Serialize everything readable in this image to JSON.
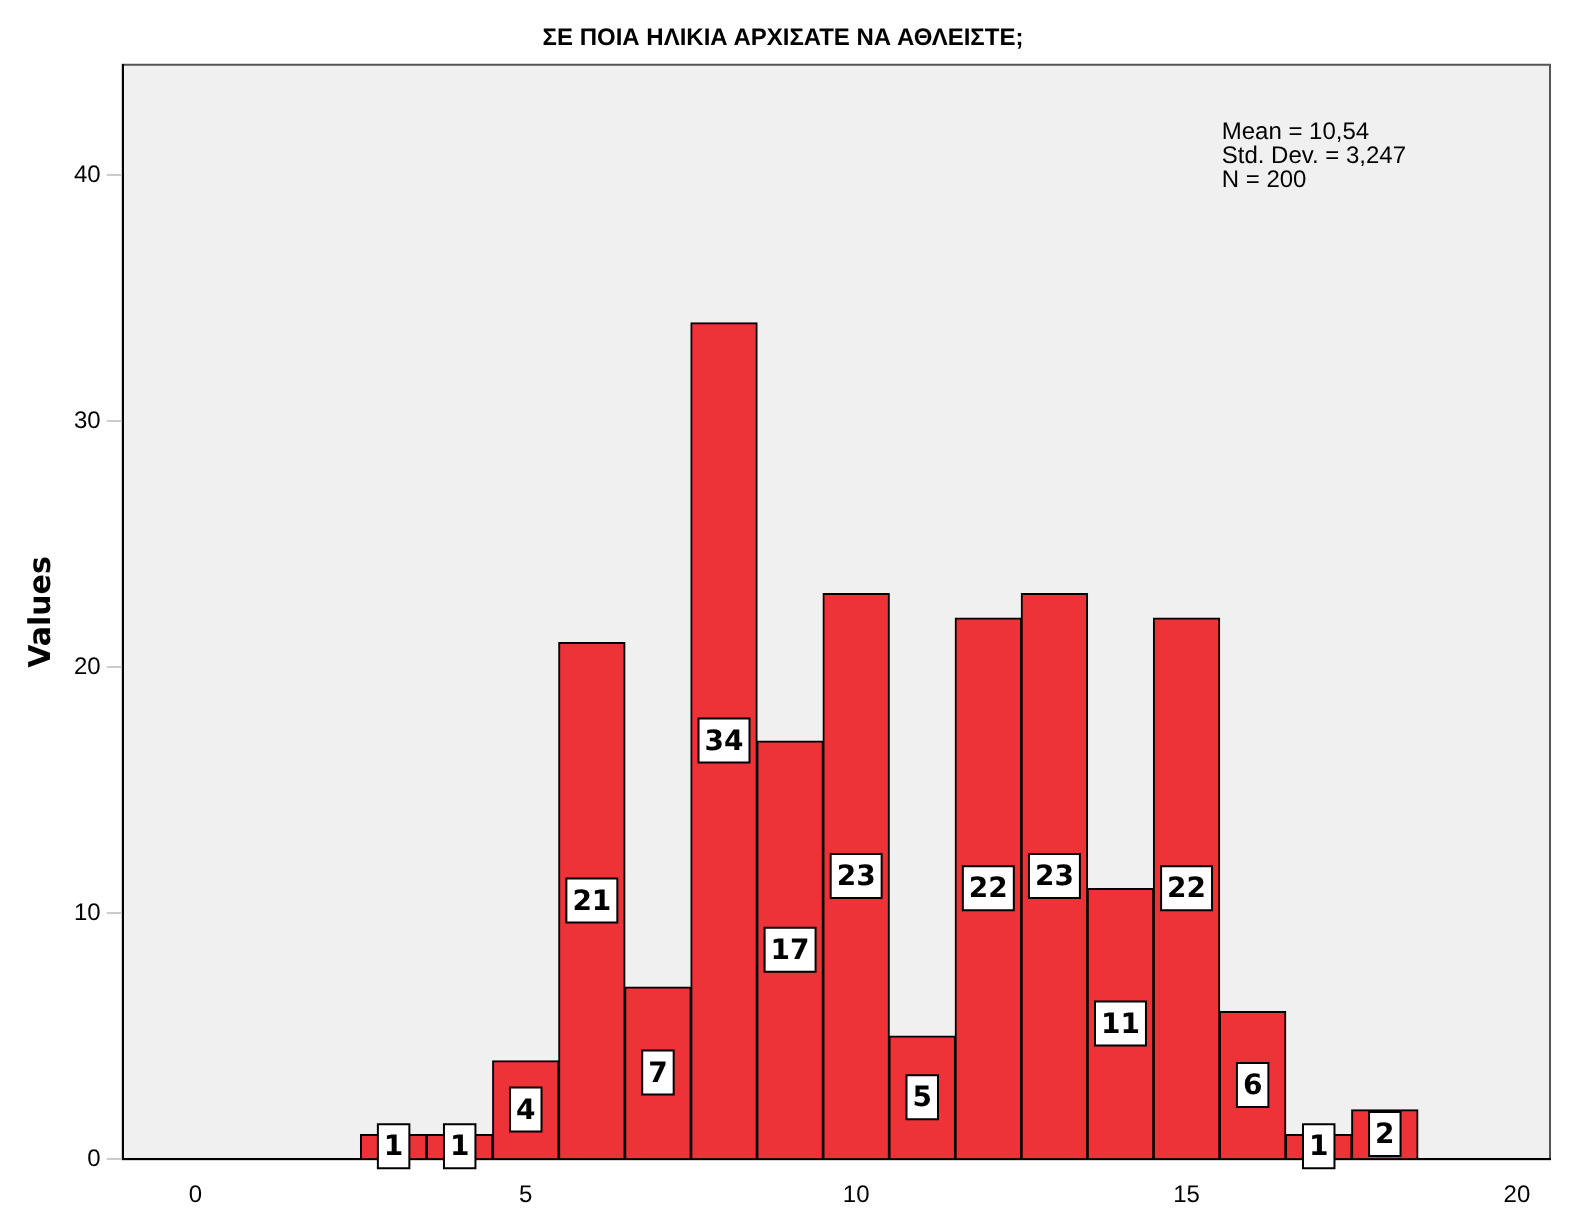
{
  "chart_data": {
    "type": "histogram",
    "title": "ΣΕ ΠΟΙΑ ΗΛΙΚΙΑ ΑΡΧΙΣΑΤΕ ΝΑ ΑΘΛΕΙΣΤΕ;",
    "ylabel": "Values",
    "bins": [
      2.5,
      3.5,
      4.5,
      5.5,
      6.5,
      7.5,
      8.5,
      9.5,
      10.5,
      11.5,
      12.5,
      13.5,
      14.5,
      15.5,
      16.5,
      17.5,
      18.5
    ],
    "values": [
      1,
      1,
      4,
      21,
      7,
      34,
      17,
      23,
      5,
      22,
      23,
      11,
      22,
      6,
      1,
      2
    ],
    "color": "#ee3338",
    "xlim": [
      -1.1,
      20.5
    ],
    "xticks": [
      0,
      5,
      10,
      15,
      20
    ],
    "ylim": [
      0,
      44.5
    ],
    "yticks": [
      0,
      10,
      20,
      30,
      40
    ],
    "grid": false,
    "legend": false,
    "data_labels": true,
    "annotations": [
      "Mean = 10,54\nStd. Dev. = 3,247\nN = 200"
    ]
  }
}
